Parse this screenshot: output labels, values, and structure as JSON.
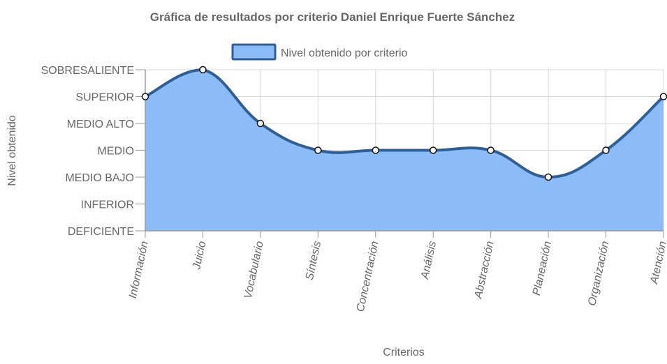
{
  "chart_data": {
    "type": "area",
    "title": "Gráfica de resultados por criterio Daniel Enrique Fuerte Sánchez",
    "xlabel": "Criterios",
    "ylabel": "Nivel obtenido",
    "y_levels": [
      "DEFICIENTE",
      "INFERIOR",
      "MEDIO BAJO",
      "MEDIO",
      "MEDIO ALTO",
      "SUPERIOR",
      "SOBRESALIENTE"
    ],
    "ylim": [
      1,
      7
    ],
    "categories": [
      "Información",
      "Juicio",
      "Vocabulario",
      "Síntesis",
      "Concentración",
      "Análisis",
      "Abstracción",
      "Planeación",
      "Organización",
      "Atención"
    ],
    "series": [
      {
        "name": "Nivel obtenido por criterio",
        "values": [
          6,
          7,
          5,
          4,
          4,
          4,
          4,
          3,
          4,
          6
        ]
      }
    ],
    "grid": true,
    "legend_position": "top",
    "colors": {
      "fill": "#8bbcf7",
      "line": "#2f5f96",
      "point_fill": "#ffffff",
      "point_stroke": "#111111",
      "grid": "#d8d8d8",
      "axis": "#9a9a9a",
      "text": "#666666"
    }
  }
}
